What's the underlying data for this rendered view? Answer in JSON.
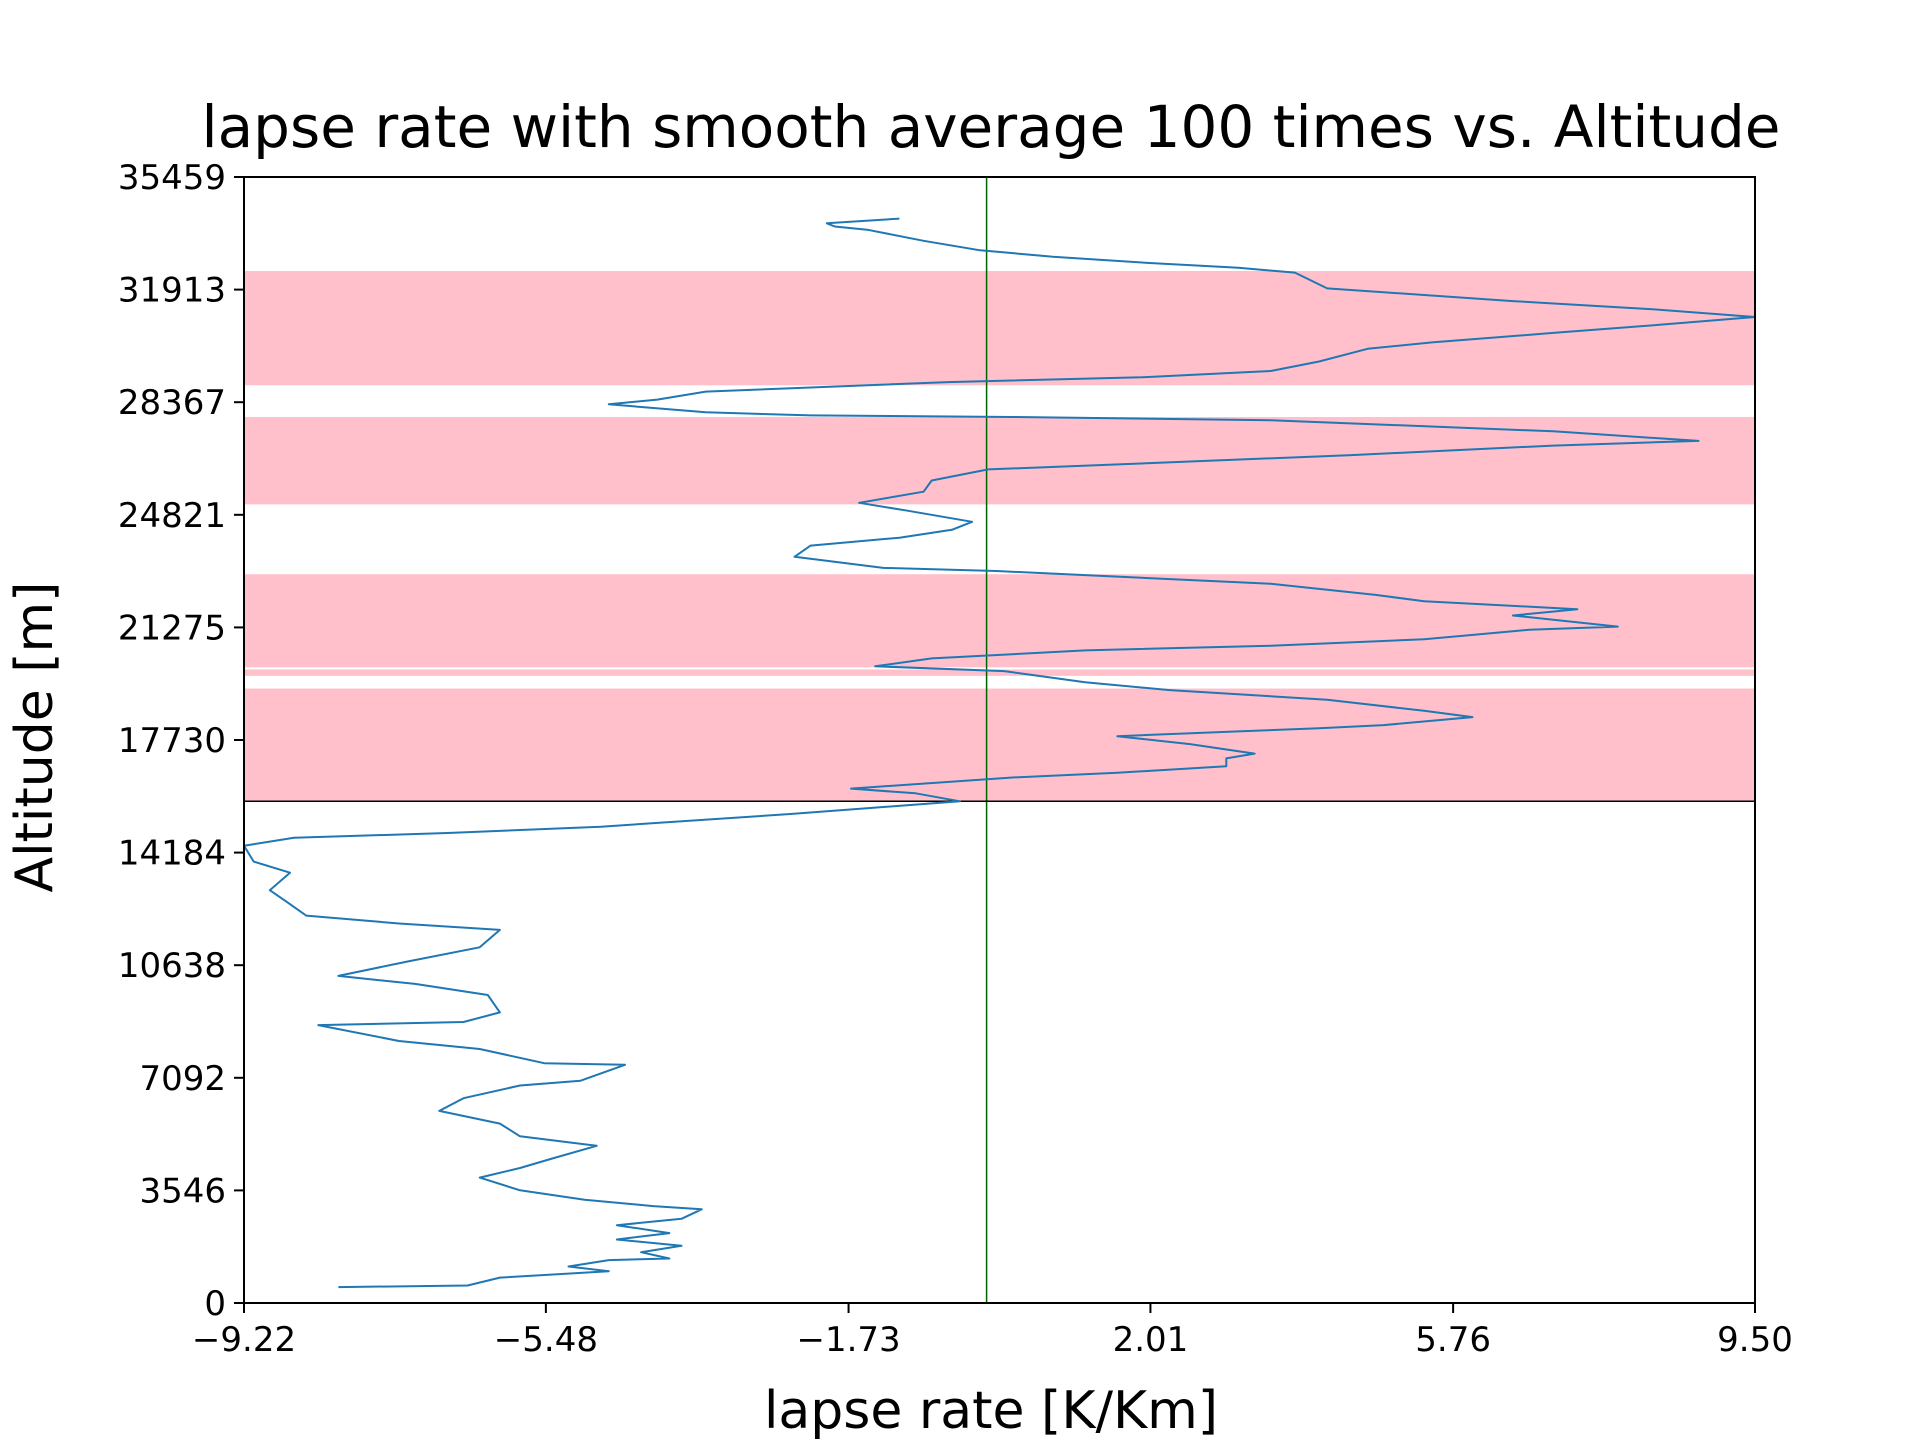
{
  "chart_data": {
    "type": "line",
    "title": "lapse rate with smooth average 100 times vs. Altitude",
    "xlabel": "lapse rate [K/Km]",
    "ylabel": "Altitude [m]",
    "xlim": [
      -9.22,
      9.5
    ],
    "ylim": [
      0,
      35459
    ],
    "x_ticks": [
      "−9.22",
      "−5.48",
      "−1.73",
      "2.01",
      "5.76",
      "9.50"
    ],
    "x_tick_values": [
      -9.22,
      -5.48,
      -1.73,
      2.01,
      5.76,
      9.5
    ],
    "y_ticks": [
      "0",
      "3546",
      "7092",
      "10638",
      "14184",
      "17730",
      "21275",
      "24821",
      "28367",
      "31913",
      "35459"
    ],
    "y_tick_values": [
      0,
      3546,
      7092,
      10638,
      14184,
      17730,
      21275,
      24821,
      28367,
      31913,
      35459
    ],
    "grid": false,
    "legend": "none",
    "colors": {
      "series": "#1f77b4",
      "band": "#ffc0cb",
      "vline": "#006400",
      "hline": "#000000"
    },
    "reference_lines": {
      "vertical_x": -0.02,
      "horizontal_y": 15800
    },
    "shaded_bands": [
      {
        "y0": 15800,
        "y1": 19350
      },
      {
        "y0": 19750,
        "y1": 19950
      },
      {
        "y0": 20020,
        "y1": 22950
      },
      {
        "y0": 25150,
        "y1": 27900
      },
      {
        "y0": 28900,
        "y1": 32500
      }
    ],
    "series": [
      {
        "points": [
          [
            -8.05,
            500
          ],
          [
            -6.45,
            550
          ],
          [
            -6.05,
            800
          ],
          [
            -4.7,
            1000
          ],
          [
            -5.2,
            1150
          ],
          [
            -4.7,
            1350
          ],
          [
            -3.95,
            1400
          ],
          [
            -4.3,
            1600
          ],
          [
            -3.8,
            1800
          ],
          [
            -4.6,
            2000
          ],
          [
            -3.95,
            2200
          ],
          [
            -4.6,
            2450
          ],
          [
            -3.8,
            2650
          ],
          [
            -3.55,
            2950
          ],
          [
            -4.15,
            3050
          ],
          [
            -5.0,
            3250
          ],
          [
            -5.8,
            3550
          ],
          [
            -6.3,
            3950
          ],
          [
            -5.8,
            4250
          ],
          [
            -5.4,
            4550
          ],
          [
            -4.85,
            4950
          ],
          [
            -5.8,
            5250
          ],
          [
            -6.05,
            5650
          ],
          [
            -6.8,
            6050
          ],
          [
            -6.5,
            6450
          ],
          [
            -5.8,
            6850
          ],
          [
            -5.05,
            7000
          ],
          [
            -4.5,
            7500
          ],
          [
            -5.5,
            7550
          ],
          [
            -6.3,
            8000
          ],
          [
            -7.3,
            8250
          ],
          [
            -8.3,
            8750
          ],
          [
            -6.5,
            8850
          ],
          [
            -6.05,
            9150
          ],
          [
            -6.2,
            9700
          ],
          [
            -7.1,
            10050
          ],
          [
            -8.05,
            10300
          ],
          [
            -7.2,
            10750
          ],
          [
            -6.3,
            11200
          ],
          [
            -6.05,
            11750
          ],
          [
            -7.3,
            11950
          ],
          [
            -8.45,
            12200
          ],
          [
            -8.7,
            12650
          ],
          [
            -8.9,
            13000
          ],
          [
            -8.65,
            13550
          ],
          [
            -9.1,
            13900
          ],
          [
            -9.22,
            14400
          ],
          [
            -8.6,
            14650
          ],
          [
            -6.7,
            14800
          ],
          [
            -4.8,
            15000
          ],
          [
            -2.45,
            15400
          ],
          [
            -0.35,
            15800
          ],
          [
            -0.9,
            16050
          ],
          [
            -1.7,
            16200
          ],
          [
            0.3,
            16550
          ],
          [
            1.6,
            16700
          ],
          [
            2.95,
            16900
          ],
          [
            2.95,
            17150
          ],
          [
            3.3,
            17300
          ],
          [
            2.5,
            17600
          ],
          [
            1.6,
            17850
          ],
          [
            3.1,
            18000
          ],
          [
            4.1,
            18100
          ],
          [
            4.9,
            18200
          ],
          [
            6.0,
            18450
          ],
          [
            5.4,
            18650
          ],
          [
            4.2,
            19000
          ],
          [
            2.25,
            19300
          ],
          [
            1.2,
            19550
          ],
          [
            0.2,
            19900
          ],
          [
            -1.4,
            20050
          ],
          [
            -0.7,
            20300
          ],
          [
            1.2,
            20550
          ],
          [
            3.5,
            20700
          ],
          [
            5.4,
            20900
          ],
          [
            6.7,
            21200
          ],
          [
            7.8,
            21300
          ],
          [
            6.5,
            21650
          ],
          [
            7.3,
            21850
          ],
          [
            5.4,
            22100
          ],
          [
            4.8,
            22300
          ],
          [
            3.5,
            22650
          ],
          [
            1.8,
            22850
          ],
          [
            0.1,
            23050
          ],
          [
            -1.3,
            23150
          ],
          [
            -2.4,
            23500
          ],
          [
            -2.2,
            23850
          ],
          [
            -1.1,
            24100
          ],
          [
            -0.45,
            24350
          ],
          [
            -0.2,
            24600
          ],
          [
            -1.0,
            24950
          ],
          [
            -1.6,
            25200
          ],
          [
            -0.8,
            25550
          ],
          [
            -0.7,
            25900
          ],
          [
            0.0,
            26250
          ],
          [
            2.0,
            26450
          ],
          [
            4.5,
            26700
          ],
          [
            7.0,
            27000
          ],
          [
            8.8,
            27150
          ],
          [
            7.0,
            27450
          ],
          [
            3.5,
            27800
          ],
          [
            0.3,
            27900
          ],
          [
            -2.2,
            27950
          ],
          [
            -3.5,
            28050
          ],
          [
            -4.7,
            28300
          ],
          [
            -4.1,
            28450
          ],
          [
            -3.5,
            28700
          ],
          [
            -2.0,
            28850
          ],
          [
            -0.5,
            29000
          ],
          [
            1.9,
            29150
          ],
          [
            3.5,
            29350
          ],
          [
            4.1,
            29650
          ],
          [
            4.7,
            30050
          ],
          [
            5.5,
            30250
          ],
          [
            7.0,
            30550
          ],
          [
            8.3,
            30800
          ],
          [
            9.5,
            31050
          ],
          [
            8.2,
            31300
          ],
          [
            6.5,
            31550
          ],
          [
            4.2,
            31950
          ],
          [
            3.8,
            32450
          ],
          [
            3.1,
            32600
          ],
          [
            2.0,
            32750
          ],
          [
            0.8,
            32950
          ],
          [
            -0.1,
            33150
          ],
          [
            -0.8,
            33450
          ],
          [
            -1.5,
            33800
          ],
          [
            -1.9,
            33900
          ],
          [
            -2.0,
            34000
          ],
          [
            -1.1,
            34150
          ]
        ]
      }
    ]
  }
}
